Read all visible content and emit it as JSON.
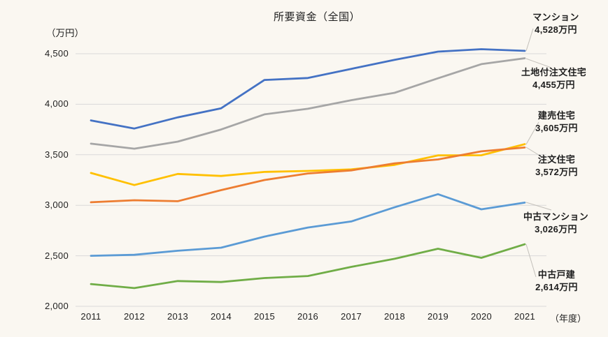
{
  "title": "所要資金（全国）",
  "y_axis_unit": "（万円）",
  "x_axis_unit": "（年度）",
  "grid_color": "#D9D9D9",
  "leader_color": "#C3C0BA",
  "background_color": "#FAF7F1",
  "chart_data": {
    "type": "line",
    "title": "所要資金（全国）",
    "xlabel": "年度",
    "ylabel": "万円",
    "x": [
      2011,
      2012,
      2013,
      2014,
      2015,
      2016,
      2017,
      2018,
      2019,
      2020,
      2021
    ],
    "x_tick_labels": [
      "2011",
      "2012",
      "2013",
      "2014",
      "2015",
      "2016",
      "2017",
      "2018",
      "2019",
      "2020",
      "2021"
    ],
    "ylim": [
      2000,
      4500
    ],
    "y_ticks": [
      4500,
      4000,
      3500,
      3000,
      2500,
      2000
    ],
    "y_tick_labels": [
      "4,500",
      "4,000",
      "3,500",
      "3,000",
      "2,500",
      "2,000"
    ],
    "grid": true,
    "legend_position": "right-annotations",
    "series": [
      {
        "name": "マンション",
        "color": "#4472C4",
        "end_value_label": "4,528万円",
        "values": [
          3840,
          3760,
          3870,
          3960,
          4240,
          4260,
          4350,
          4440,
          4521,
          4545,
          4528
        ]
      },
      {
        "name": "土地付注文住宅",
        "color": "#A6A6A6",
        "end_value_label": "4,455万円",
        "values": [
          3610,
          3560,
          3630,
          3750,
          3900,
          3955,
          4040,
          4113,
          4257,
          4397,
          4455
        ]
      },
      {
        "name": "建売住宅",
        "color": "#FFC000",
        "end_value_label": "3,605万円",
        "values": [
          3320,
          3200,
          3310,
          3290,
          3330,
          3340,
          3355,
          3400,
          3494,
          3495,
          3605
        ]
      },
      {
        "name": "注文住宅",
        "color": "#ED7D31",
        "end_value_label": "3,572万円",
        "values": [
          3030,
          3050,
          3040,
          3150,
          3250,
          3315,
          3345,
          3415,
          3454,
          3534,
          3572
        ]
      },
      {
        "name": "中古マンション",
        "color": "#5B9BD5",
        "end_value_label": "3,026万円",
        "values": [
          2500,
          2510,
          2550,
          2580,
          2690,
          2780,
          2840,
          2980,
          3110,
          2960,
          3026
        ]
      },
      {
        "name": "中古戸建",
        "color": "#70AD47",
        "end_value_label": "2,614万円",
        "values": [
          2220,
          2180,
          2250,
          2240,
          2280,
          2300,
          2390,
          2470,
          2570,
          2480,
          2614
        ]
      }
    ]
  }
}
